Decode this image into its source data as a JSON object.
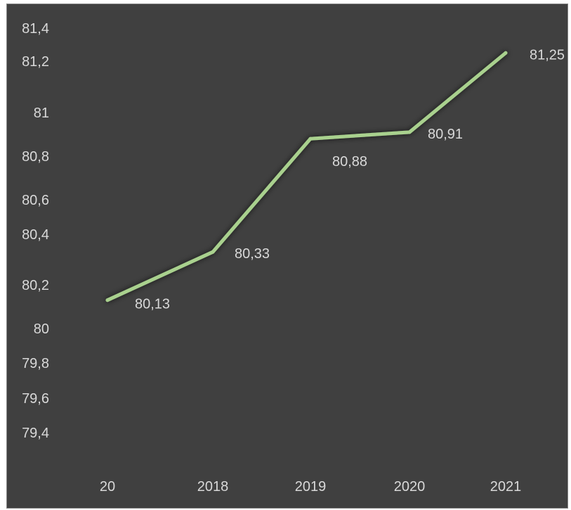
{
  "chart_data": {
    "type": "line",
    "categories": [
      "20",
      "2018",
      "2019",
      "2020",
      "2021"
    ],
    "series": [
      {
        "values": [
          80.13,
          80.33,
          80.88,
          80.91,
          81.25
        ]
      }
    ],
    "data_labels": [
      "80,13",
      "80,33",
      "80,88",
      "80,91",
      "81,25"
    ],
    "y_tick_labels": [
      "81,4",
      "81,2",
      "81",
      "80,8",
      "80,6",
      "80,4",
      "80,2",
      "80",
      "79,8",
      "79,6",
      "79,4"
    ],
    "y_tick_values": [
      81.4,
      81.2,
      81.0,
      80.8,
      80.6,
      80.4,
      80.2,
      80.0,
      79.8,
      79.6,
      79.4
    ],
    "ylim": [
      79.4,
      81.4
    ],
    "grid": false,
    "legend": "none",
    "title": "",
    "xlabel": "",
    "ylabel": "",
    "colors": {
      "background": "#404040",
      "line": "#a9d18e",
      "text": "#d9d9d9"
    }
  }
}
